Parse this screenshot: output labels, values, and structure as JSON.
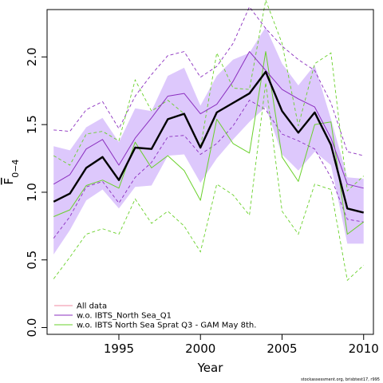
{
  "chart_data": {
    "type": "line",
    "xlabel": "Year",
    "ylabel_main": "F",
    "ylabel_sub": "0−4",
    "xlim": [
      1990.6,
      2010.6
    ],
    "ylim": [
      -0.05,
      2.35
    ],
    "x_ticks": [
      1995,
      2000,
      2005,
      2010
    ],
    "y_ticks": [
      0.0,
      0.5,
      1.0,
      1.5,
      2.0
    ],
    "x_tick_labels": [
      "1995",
      "2000",
      "2005",
      "2010"
    ],
    "y_tick_labels": [
      "0.0",
      "0.5",
      "1.0",
      "1.5",
      "2.0"
    ],
    "x": [
      1991,
      1992,
      1993,
      1994,
      1995,
      1996,
      1997,
      1998,
      1999,
      2000,
      2001,
      2002,
      2003,
      2004,
      2005,
      2006,
      2007,
      2008,
      2009,
      2010
    ],
    "band": {
      "color": "#ddc8fc",
      "lower": [
        0.54,
        0.72,
        0.94,
        1.02,
        0.88,
        1.04,
        1.05,
        1.27,
        1.28,
        1.07,
        1.25,
        1.39,
        1.52,
        1.63,
        1.28,
        1.16,
        1.3,
        1.2,
        0.62,
        0.62
      ],
      "upper": [
        1.34,
        1.31,
        1.48,
        1.55,
        1.37,
        1.62,
        1.6,
        1.86,
        1.92,
        1.64,
        1.86,
        1.98,
        2.03,
        2.22,
        1.95,
        1.79,
        1.94,
        1.54,
        1.11,
        1.1
      ]
    },
    "series": [
      {
        "name": "All data",
        "color": "#000000",
        "legend_color": "#f08aa0",
        "values": [
          0.93,
          0.99,
          1.18,
          1.26,
          1.09,
          1.33,
          1.32,
          1.54,
          1.58,
          1.33,
          1.59,
          1.66,
          1.73,
          1.89,
          1.6,
          1.44,
          1.59,
          1.35,
          0.88,
          0.85
        ]
      },
      {
        "name": "w.o. IBTS_North Sea_Q1",
        "color": "#8b2fbf",
        "values": [
          1.06,
          1.13,
          1.32,
          1.39,
          1.2,
          1.4,
          1.55,
          1.71,
          1.73,
          1.58,
          1.65,
          1.82,
          2.04,
          1.9,
          1.76,
          1.69,
          1.63,
          1.4,
          1.06,
          1.03
        ],
        "lower": [
          0.66,
          0.82,
          1.04,
          1.08,
          0.92,
          1.11,
          1.22,
          1.41,
          1.42,
          1.28,
          1.36,
          1.49,
          1.68,
          1.61,
          1.43,
          1.38,
          1.32,
          1.11,
          0.8,
          0.78
        ],
        "upper": [
          1.46,
          1.45,
          1.61,
          1.67,
          1.47,
          1.71,
          1.87,
          2.01,
          2.04,
          1.85,
          1.93,
          2.1,
          2.37,
          2.21,
          2.08,
          1.98,
          1.9,
          1.66,
          1.3,
          1.27
        ]
      },
      {
        "name": "w.o. IBTS North Sea Sprat Q3 - GAM May 8th.",
        "color": "#6ad12b",
        "values": [
          0.82,
          0.87,
          1.05,
          1.09,
          1.03,
          1.37,
          1.18,
          1.27,
          1.16,
          0.94,
          1.54,
          1.36,
          1.29,
          2.04,
          1.26,
          1.08,
          1.5,
          1.52,
          0.69,
          0.78
        ],
        "lower": [
          0.36,
          0.52,
          0.69,
          0.73,
          0.69,
          0.95,
          0.77,
          0.86,
          0.75,
          0.56,
          1.06,
          0.98,
          0.83,
          1.81,
          0.86,
          0.69,
          1.06,
          1.02,
          0.35,
          0.46
        ],
        "upper": [
          1.27,
          1.2,
          1.43,
          1.45,
          1.38,
          1.83,
          1.6,
          1.68,
          1.58,
          1.33,
          2.03,
          1.77,
          1.76,
          2.42,
          2.1,
          1.49,
          1.95,
          2.03,
          1.01,
          1.12
        ]
      }
    ],
    "legend": {
      "position": "bottom-left"
    },
    "grid": false,
    "credit": "stockassessment.org, brisbtest17, r995"
  }
}
